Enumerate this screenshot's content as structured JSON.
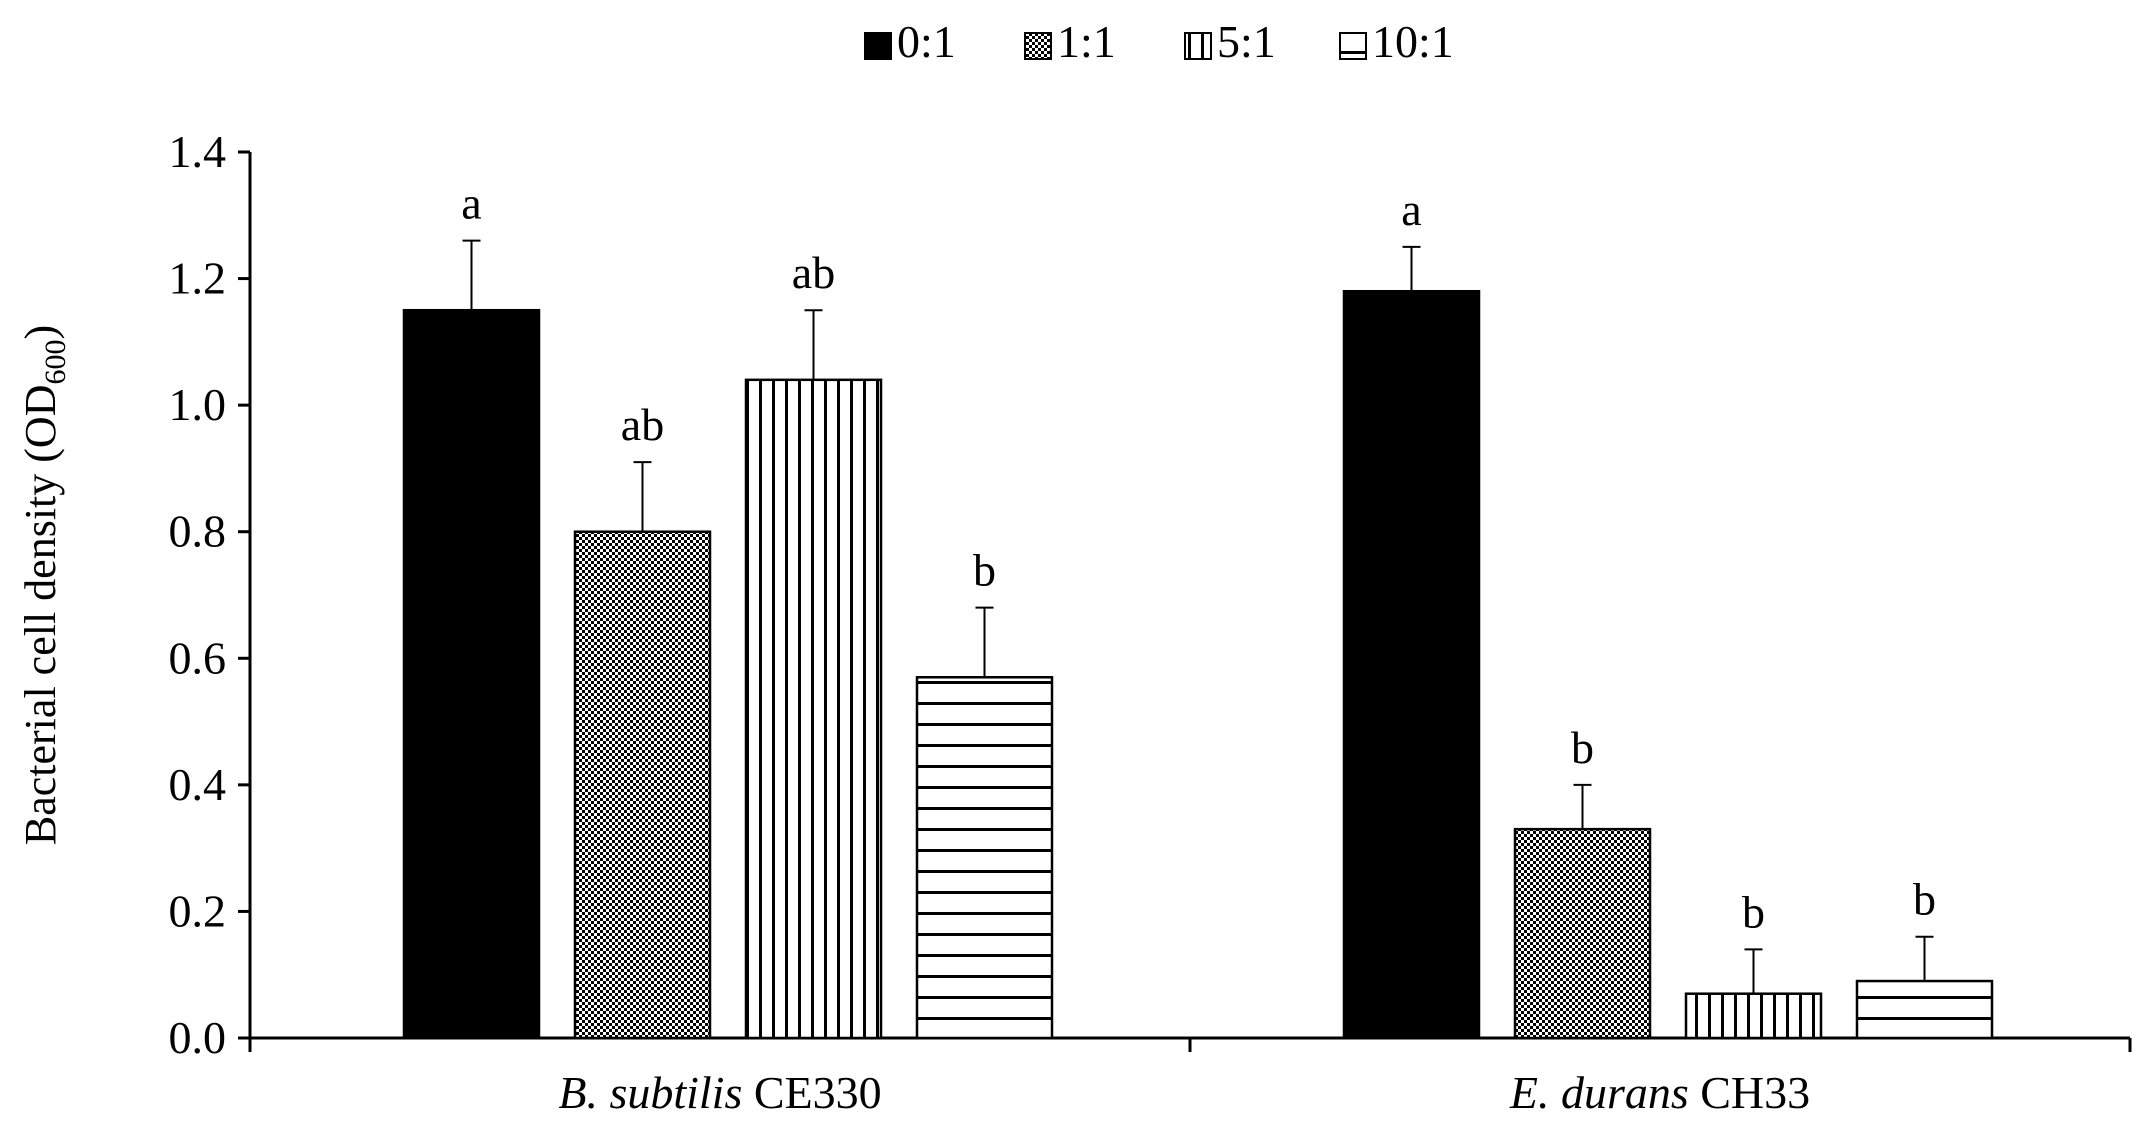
{
  "chart_data": {
    "type": "bar",
    "title": "",
    "xlabel": "",
    "ylabel": {
      "main": "Bacterial cell density (OD",
      "subscript": "600",
      "close": ")"
    },
    "ylim": [
      0,
      1.4
    ],
    "yticks": [
      "0.0",
      "0.2",
      "0.4",
      "0.6",
      "0.8",
      "1.0",
      "1.2",
      "1.4"
    ],
    "grid": false,
    "legend_position": "top-center",
    "categories": [
      {
        "italic": "B. subtilis",
        "plain": " CE330"
      },
      {
        "italic": "E. durans",
        "plain": " CH33"
      }
    ],
    "series": [
      {
        "name": "0:1",
        "pattern": "solid",
        "values": [
          1.15,
          1.18
        ],
        "errors": [
          0.11,
          0.07
        ],
        "significance": [
          "a",
          "a"
        ]
      },
      {
        "name": "1:1",
        "pattern": "checker",
        "values": [
          0.8,
          0.33
        ],
        "errors": [
          0.11,
          0.07
        ],
        "significance": [
          "ab",
          "b"
        ]
      },
      {
        "name": "5:1",
        "pattern": "vertical",
        "values": [
          1.04,
          0.07
        ],
        "errors": [
          0.11,
          0.07
        ],
        "significance": [
          "ab",
          "b"
        ]
      },
      {
        "name": "10:1",
        "pattern": "horizontal",
        "values": [
          0.57,
          0.09
        ],
        "errors": [
          0.11,
          0.07
        ],
        "significance": [
          "b",
          "b"
        ]
      }
    ],
    "colors": {
      "bar_stroke": "#000000",
      "solid_fill": "#000000",
      "background": "#ffffff"
    }
  }
}
